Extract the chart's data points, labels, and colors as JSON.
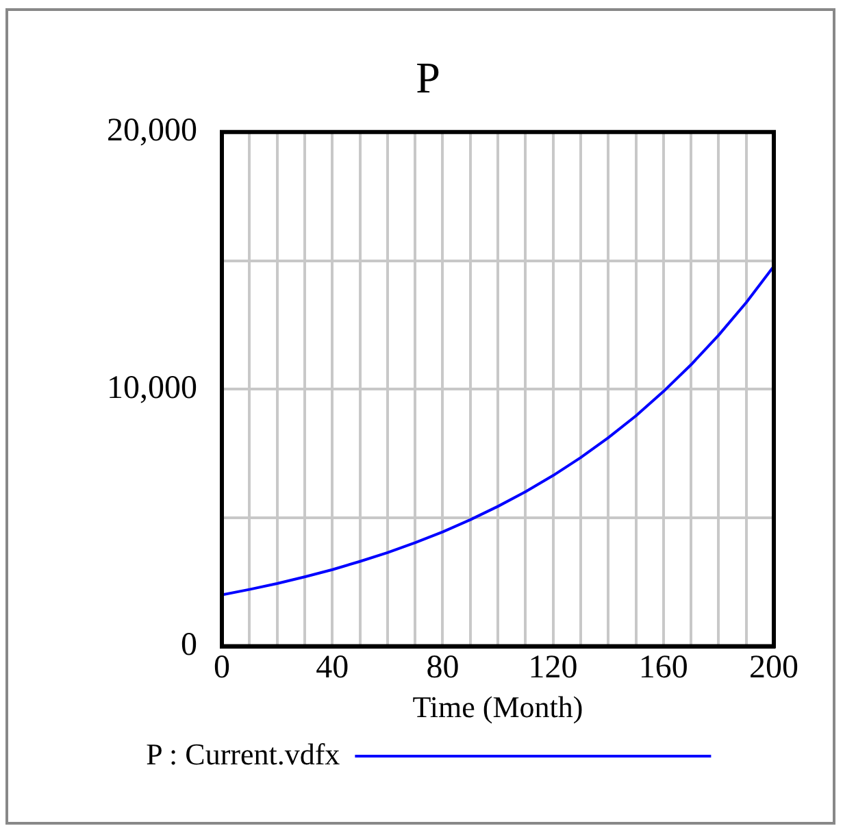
{
  "chart_data": {
    "type": "line",
    "title": "P",
    "xlabel": "Time (Month)",
    "x": [
      0,
      10,
      20,
      30,
      40,
      50,
      60,
      70,
      80,
      90,
      100,
      110,
      120,
      130,
      140,
      150,
      160,
      170,
      180,
      190,
      200
    ],
    "series": [
      {
        "name": "P : Current.vdfx",
        "color": "#0000ff",
        "values": [
          2000,
          2210,
          2440,
          2700,
          2980,
          3300,
          3640,
          4030,
          4450,
          4920,
          5440,
          6010,
          6640,
          7340,
          8110,
          8960,
          9910,
          10950,
          12100,
          13370,
          14780
        ]
      }
    ],
    "xlim": [
      0,
      200
    ],
    "xticks": [
      0,
      {
        "value": 10,
        "label": null
      },
      {
        "value": 20,
        "label": null
      },
      {
        "value": 30,
        "label": null
      },
      40,
      {
        "value": 50,
        "label": null
      },
      {
        "value": 60,
        "label": null
      },
      {
        "value": 70,
        "label": null
      },
      80,
      {
        "value": 90,
        "label": null
      },
      {
        "value": 100,
        "label": null
      },
      {
        "value": 110,
        "label": null
      },
      120,
      {
        "value": 130,
        "label": null
      },
      {
        "value": 140,
        "label": null
      },
      {
        "value": 150,
        "label": null
      },
      160,
      {
        "value": 170,
        "label": null
      },
      {
        "value": 180,
        "label": null
      },
      {
        "value": 190,
        "label": null
      },
      200
    ],
    "ylim": [
      0,
      20000
    ],
    "yticks": [
      0,
      {
        "value": 5000,
        "label": null
      },
      {
        "value": 10000,
        "label": "10,000"
      },
      {
        "value": 15000,
        "label": null
      },
      {
        "value": 20000,
        "label": "20,000"
      }
    ],
    "grid": true,
    "legend": "bottom",
    "marker": "none",
    "line_style": "solid"
  }
}
